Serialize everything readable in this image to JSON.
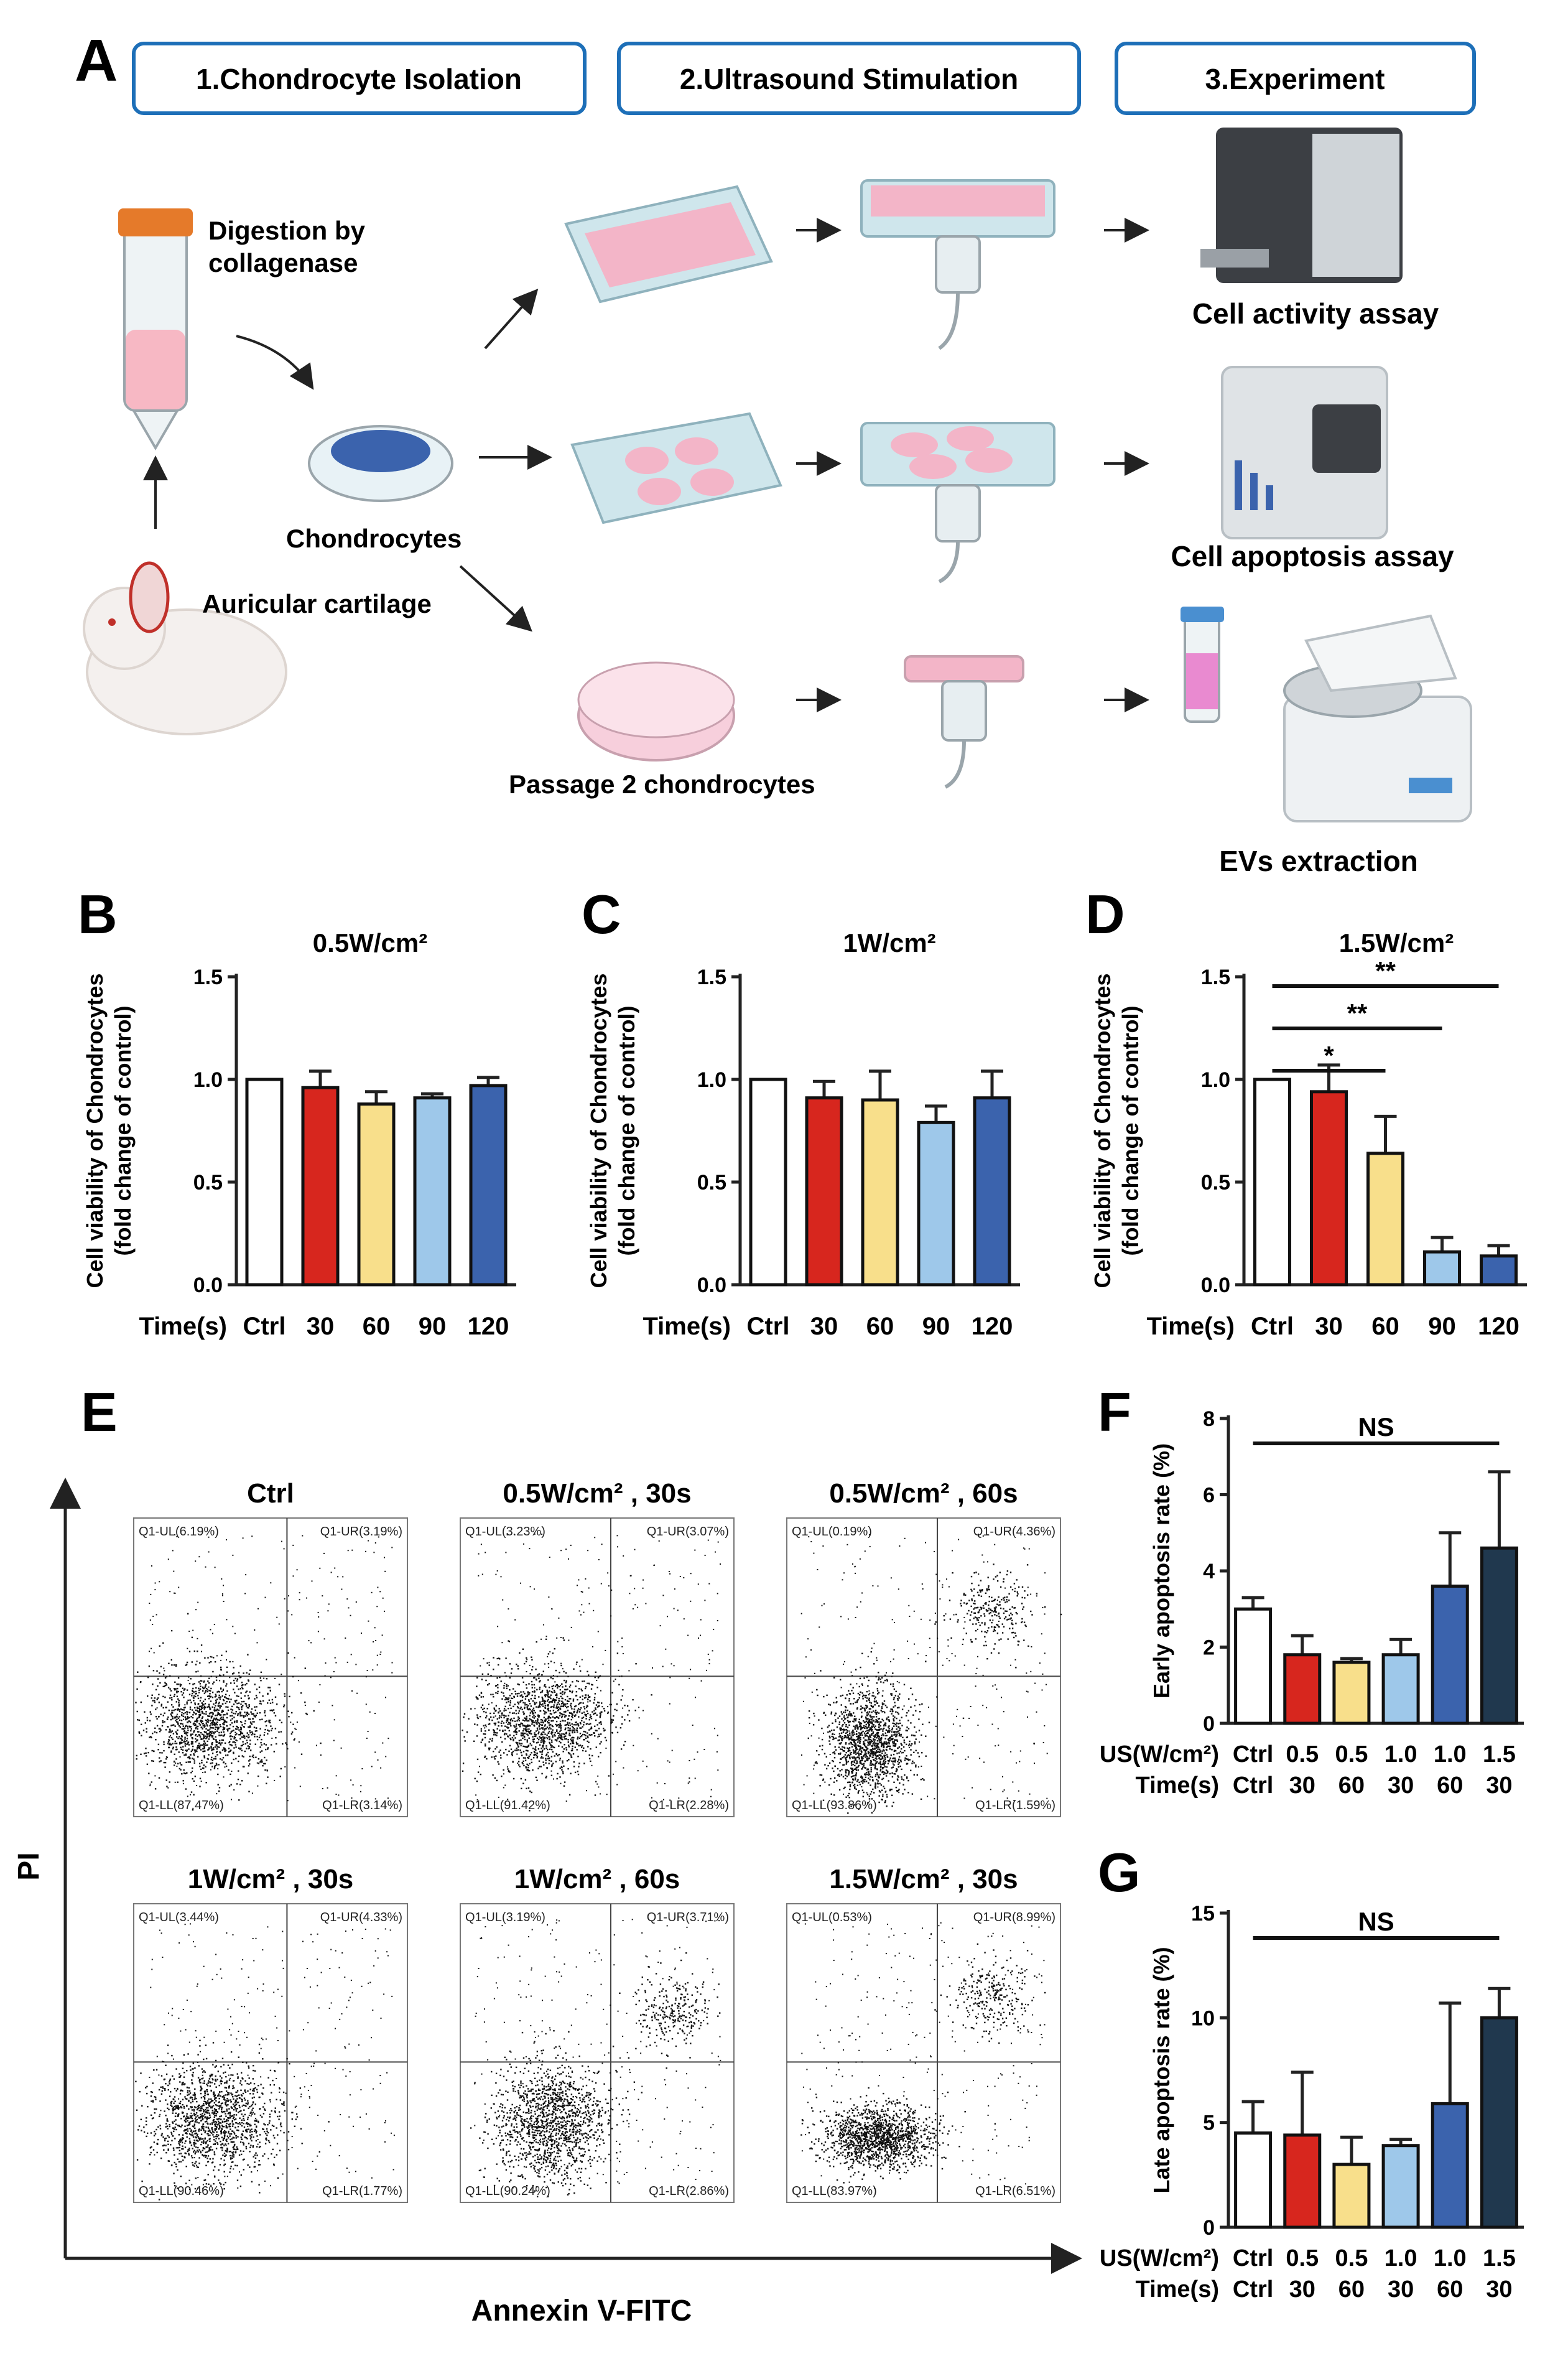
{
  "colors": {
    "ctrl": "#ffffff",
    "red": "#d7261e",
    "yellow": "#f8df8b",
    "lightblue": "#9ec8ea",
    "blue": "#3b63ad",
    "navy": "#20384e",
    "stage_border": "#1d6fb8",
    "pink": "#f3b5c8",
    "plate": "#cfe6ec"
  },
  "panel_letters": {
    "A": "A",
    "B": "B",
    "C": "C",
    "D": "D",
    "E": "E",
    "F": "F",
    "G": "G"
  },
  "schematic": {
    "stages": [
      "1.Chondrocyte Isolation",
      "2.Ultrasound Stimulation",
      "3.Experiment"
    ],
    "digestion_line1": "Digestion by",
    "digestion_line2": "collagenase",
    "chondrocytes": "Chondrocytes",
    "auricular": "Auricular cartilage",
    "passage": "Passage 2 chondrocytes",
    "outcomes": [
      "Cell activity assay",
      "Cell apoptosis assay",
      "EVs extraction"
    ]
  },
  "viability_ylabel_line1": "Cell viability of Chondrocytes",
  "viability_ylabel_line2": "(fold change of control)",
  "time_label": "Time(s)",
  "flow": {
    "y_axis": "PI",
    "x_axis": "Annexin V-FITC",
    "titles": [
      "Ctrl",
      "0.5W/cm² , 30s",
      "0.5W/cm² , 60s",
      "1W/cm² , 30s",
      "1W/cm² , 60s",
      "1.5W/cm² , 30s"
    ],
    "quadrants": [
      {
        "UL": "Q1-UL(6.19%)",
        "UR": "Q1-UR(3.19%)",
        "LL": "Q1-LL(87.47%)",
        "LR": "Q1-LR(3.14%)"
      },
      {
        "UL": "Q1-UL(3.23%)",
        "UR": "Q1-UR(3.07%)",
        "LL": "Q1-LL(91.42%)",
        "LR": "Q1-LR(2.28%)"
      },
      {
        "UL": "Q1-UL(0.19%)",
        "UR": "Q1-UR(4.36%)",
        "LL": "Q1-LL(93.86%)",
        "LR": "Q1-LR(1.59%)"
      },
      {
        "UL": "Q1-UL(3.44%)",
        "UR": "Q1-UR(4.33%)",
        "LL": "Q1-LL(90.46%)",
        "LR": "Q1-LR(1.77%)"
      },
      {
        "UL": "Q1-UL(3.19%)",
        "UR": "Q1-UR(3.71%)",
        "LL": "Q1-LL(90.24%)",
        "LR": "Q1-LR(2.86%)"
      },
      {
        "UL": "Q1-UL(0.53%)",
        "UR": "Q1-UR(8.99%)",
        "LL": "Q1-LL(83.97%)",
        "LR": "Q1-LR(6.51%)"
      }
    ]
  },
  "chart_data": [
    {
      "id": "B",
      "type": "bar",
      "title": "0.5W/cm²",
      "categories": [
        "Ctrl",
        "30",
        "60",
        "90",
        "120"
      ],
      "values": [
        1.0,
        0.96,
        0.88,
        0.91,
        0.97
      ],
      "errors": [
        0,
        0.08,
        0.06,
        0.02,
        0.04
      ],
      "ylabel": "Cell viability of Chondrocytes (fold change of control)",
      "xlabel": "Time(s)",
      "ylim": [
        0,
        1.5
      ],
      "yticks": [
        "0.0",
        "0.5",
        "1.0",
        "1.5"
      ],
      "significance": []
    },
    {
      "id": "C",
      "type": "bar",
      "title": "1W/cm²",
      "categories": [
        "Ctrl",
        "30",
        "60",
        "90",
        "120"
      ],
      "values": [
        1.0,
        0.91,
        0.9,
        0.79,
        0.91
      ],
      "errors": [
        0,
        0.08,
        0.14,
        0.08,
        0.13
      ],
      "ylabel": "Cell viability of Chondrocytes (fold change of control)",
      "xlabel": "Time(s)",
      "ylim": [
        0,
        1.5
      ],
      "yticks": [
        "0.0",
        "0.5",
        "1.0",
        "1.5"
      ],
      "significance": []
    },
    {
      "id": "D",
      "type": "bar",
      "title": "1.5W/cm²",
      "categories": [
        "Ctrl",
        "30",
        "60",
        "90",
        "120"
      ],
      "values": [
        1.0,
        0.94,
        0.64,
        0.16,
        0.14
      ],
      "errors": [
        0,
        0.13,
        0.18,
        0.07,
        0.05
      ],
      "ylabel": "Cell viability of Chondrocytes (fold change of control)",
      "xlabel": "Time(s)",
      "ylim": [
        0,
        1.5
      ],
      "yticks": [
        "0.0",
        "0.5",
        "1.0",
        "1.5"
      ],
      "significance": [
        {
          "from": 0,
          "to": 4,
          "label": "**"
        },
        {
          "from": 0,
          "to": 3,
          "label": "**"
        },
        {
          "from": 0,
          "to": 2,
          "label": "*"
        }
      ]
    },
    {
      "id": "F",
      "type": "bar",
      "categories": [
        "Ctrl",
        "0.5/30",
        "0.5/60",
        "1.0/30",
        "1.0/60",
        "1.5/30"
      ],
      "row1_label": "US(W/cm²)",
      "row1": [
        "Ctrl",
        "0.5",
        "0.5",
        "1.0",
        "1.0",
        "1.5"
      ],
      "row2_label": "Time(s)",
      "row2": [
        "Ctrl",
        "30",
        "60",
        "30",
        "60",
        "30"
      ],
      "values": [
        3.0,
        1.8,
        1.6,
        1.8,
        3.6,
        4.6
      ],
      "errors": [
        0.3,
        0.5,
        0.1,
        0.4,
        1.4,
        2.0
      ],
      "ylabel": "Early apoptosis rate (%)",
      "ylim": [
        0,
        8
      ],
      "yticks": [
        "0",
        "2",
        "4",
        "6",
        "8"
      ],
      "significance": [
        {
          "from": 0,
          "to": 5,
          "label": "NS"
        }
      ]
    },
    {
      "id": "G",
      "type": "bar",
      "categories": [
        "Ctrl",
        "0.5/30",
        "0.5/60",
        "1.0/30",
        "1.0/60",
        "1.5/30"
      ],
      "row1_label": "US(W/cm²)",
      "row1": [
        "Ctrl",
        "0.5",
        "0.5",
        "1.0",
        "1.0",
        "1.5"
      ],
      "row2_label": "Time(s)",
      "row2": [
        "Ctrl",
        "30",
        "60",
        "30",
        "60",
        "30"
      ],
      "values": [
        4.5,
        4.4,
        3.0,
        3.9,
        5.9,
        10.0
      ],
      "errors": [
        1.5,
        3.0,
        1.3,
        0.3,
        4.8,
        1.4
      ],
      "ylabel": "Late apoptosis rate (%)",
      "ylim": [
        0,
        15
      ],
      "yticks": [
        "0",
        "5",
        "10",
        "15"
      ],
      "significance": [
        {
          "from": 0,
          "to": 5,
          "label": "NS"
        }
      ]
    }
  ]
}
